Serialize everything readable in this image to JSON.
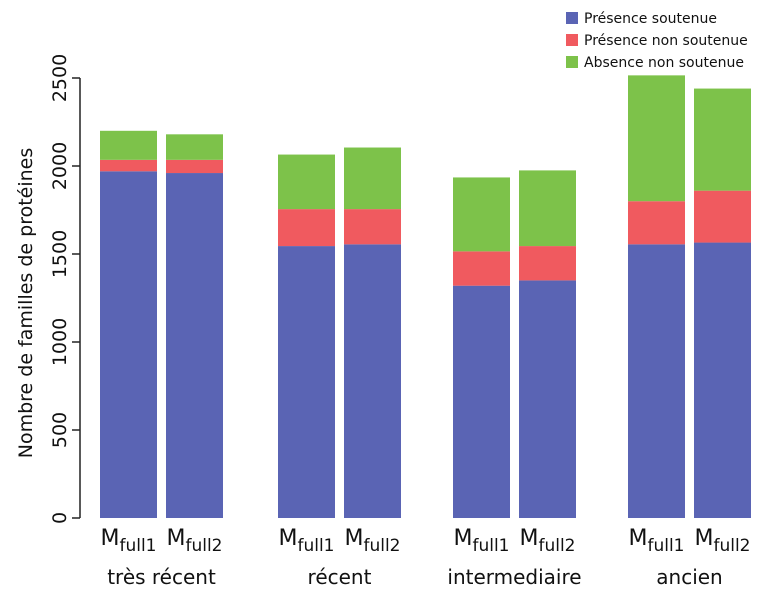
{
  "chart_data": {
    "type": "bar",
    "stacked": true,
    "ylabel": "Nombre de familles de protéines",
    "ylim": [
      0,
      2500
    ],
    "yticks": [
      0,
      500,
      1000,
      1500,
      2000,
      2500
    ],
    "groups": [
      "très récent",
      "récent",
      "intermediaire",
      "ancien"
    ],
    "bar_labels": [
      {
        "main": "M",
        "sub": "full1"
      },
      {
        "main": "M",
        "sub": "full2"
      }
    ],
    "series": [
      {
        "name": "Présence soutenue",
        "color": "#5a64b4",
        "values": [
          [
            1970,
            1960
          ],
          [
            1545,
            1555
          ],
          [
            1320,
            1350
          ],
          [
            1555,
            1565
          ]
        ]
      },
      {
        "name": "Présence non soutenue",
        "color": "#f05a5f",
        "values": [
          [
            65,
            75
          ],
          [
            210,
            200
          ],
          [
            195,
            195
          ],
          [
            245,
            295
          ]
        ]
      },
      {
        "name": "Absence non soutenue",
        "color": "#7dc24a",
        "values": [
          [
            165,
            145
          ],
          [
            310,
            350
          ],
          [
            420,
            430
          ],
          [
            715,
            580
          ]
        ]
      }
    ],
    "legend_position": "top-right",
    "grid": false
  }
}
